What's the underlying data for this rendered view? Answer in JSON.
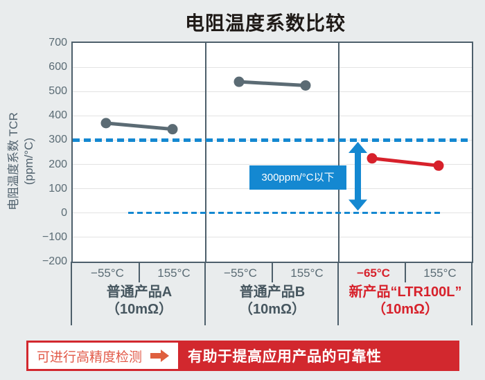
{
  "title": "电阻温度系数比较",
  "chart_data": {
    "type": "line",
    "title": "电阻温度系数比较",
    "ylabel": "电阻温度系数 TCR",
    "ylabel_unit": "(ppm/°C)",
    "ylim": [
      -200,
      700
    ],
    "yticks": [
      700,
      600,
      500,
      400,
      300,
      200,
      100,
      0,
      -100,
      -200
    ],
    "grid": true,
    "panels": [
      {
        "name": "普通产品A",
        "spec": "（10mΩ）",
        "x_labels": [
          "−55°C",
          "155°C"
        ],
        "values": [
          370,
          345
        ],
        "line_color": "#5b6b74",
        "label_color": "#46565f",
        "x_label_colors": [
          "#5a6b74",
          "#5a6b74"
        ],
        "x_label_bold": [
          false,
          false
        ]
      },
      {
        "name": "普通产品B",
        "spec": "（10mΩ）",
        "x_labels": [
          "−55°C",
          "155°C"
        ],
        "values": [
          540,
          525
        ],
        "line_color": "#5b6b74",
        "label_color": "#46565f",
        "x_label_colors": [
          "#5a6b74",
          "#5a6b74"
        ],
        "x_label_bold": [
          false,
          false
        ]
      },
      {
        "name": "新产品“LTR100L”",
        "spec": "（10mΩ）",
        "x_labels": [
          "−65°C",
          "155°C"
        ],
        "values": [
          225,
          195
        ],
        "line_color": "#d7212b",
        "label_color": "#d7212b",
        "x_label_colors": [
          "#d7212b",
          "#5a6b74"
        ],
        "x_label_bold": [
          true,
          false
        ]
      }
    ],
    "reference_lines": [
      {
        "value": 300,
        "style": "dashed",
        "color": "#1488d1",
        "thickness": 5
      },
      {
        "value": 0,
        "style": "dashed",
        "color": "#1488d1",
        "thickness": 3
      }
    ],
    "annotation": {
      "label": "300ppm/°C以下",
      "from": 0,
      "to": 300,
      "color": "#1488d1"
    }
  },
  "footer": {
    "badge": "可进行高精度检测",
    "message": "有助于提高应用产品的可靠性",
    "badge_color": "#e25a49",
    "arrow_color": "#df5f3e",
    "banner_color": "#d2282e"
  }
}
